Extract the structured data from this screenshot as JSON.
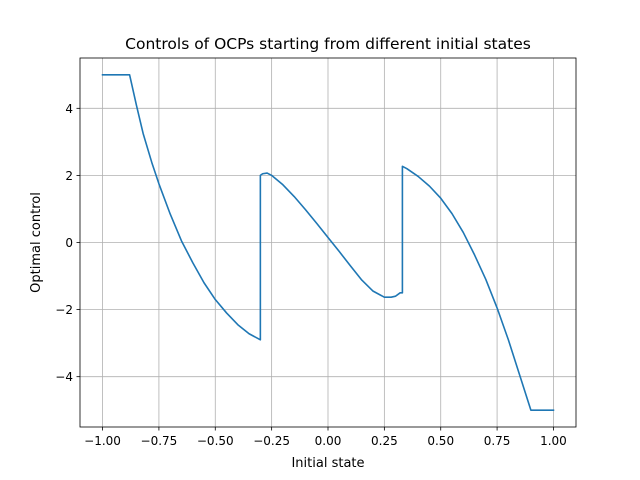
{
  "chart_data": {
    "type": "line",
    "title": "Controls of OCPs starting from different initial states",
    "xlabel": "Initial state",
    "ylabel": "Optimal control",
    "xlim": [
      -1.1,
      1.1
    ],
    "ylim": [
      -5.5,
      5.5
    ],
    "xticks": [
      -1.0,
      -0.75,
      -0.5,
      -0.25,
      0.0,
      0.25,
      0.5,
      0.75,
      1.0
    ],
    "xtick_labels": [
      "−1.00",
      "−0.75",
      "−0.50",
      "−0.25",
      "0.00",
      "0.25",
      "0.50",
      "0.75",
      "1.00"
    ],
    "yticks": [
      -4,
      -2,
      0,
      2,
      4
    ],
    "ytick_labels": [
      "−4",
      "−2",
      "0",
      "2",
      "4"
    ],
    "grid": true,
    "legend": "none",
    "series_color": "#1f77b4",
    "series": [
      {
        "x": [
          -1.0,
          -0.94,
          -0.9,
          -0.88,
          -0.85,
          -0.82,
          -0.78,
          -0.75,
          -0.7,
          -0.65,
          -0.6,
          -0.55,
          -0.5,
          -0.45,
          -0.4,
          -0.35,
          -0.3,
          -0.3,
          -0.29,
          -0.27,
          -0.25,
          -0.2,
          -0.15,
          -0.1,
          -0.05,
          0.0,
          0.05,
          0.1,
          0.15,
          0.2,
          0.25,
          0.28,
          0.3,
          0.32,
          0.33,
          0.33,
          0.35,
          0.4,
          0.45,
          0.5,
          0.55,
          0.6,
          0.65,
          0.7,
          0.75,
          0.8,
          0.85,
          0.9,
          0.95,
          1.0
        ],
        "y": [
          5.0,
          5.0,
          5.0,
          5.0,
          4.1,
          3.25,
          2.35,
          1.75,
          0.85,
          0.05,
          -0.6,
          -1.2,
          -1.7,
          -2.1,
          -2.45,
          -2.72,
          -2.9,
          2.0,
          2.05,
          2.07,
          2.0,
          1.72,
          1.37,
          0.98,
          0.57,
          0.15,
          -0.27,
          -0.7,
          -1.12,
          -1.45,
          -1.63,
          -1.63,
          -1.6,
          -1.5,
          -1.5,
          2.27,
          2.2,
          1.97,
          1.68,
          1.32,
          0.86,
          0.3,
          -0.37,
          -1.1,
          -1.95,
          -2.9,
          -3.95,
          -5.0,
          -5.0,
          -5.0
        ]
      }
    ]
  }
}
